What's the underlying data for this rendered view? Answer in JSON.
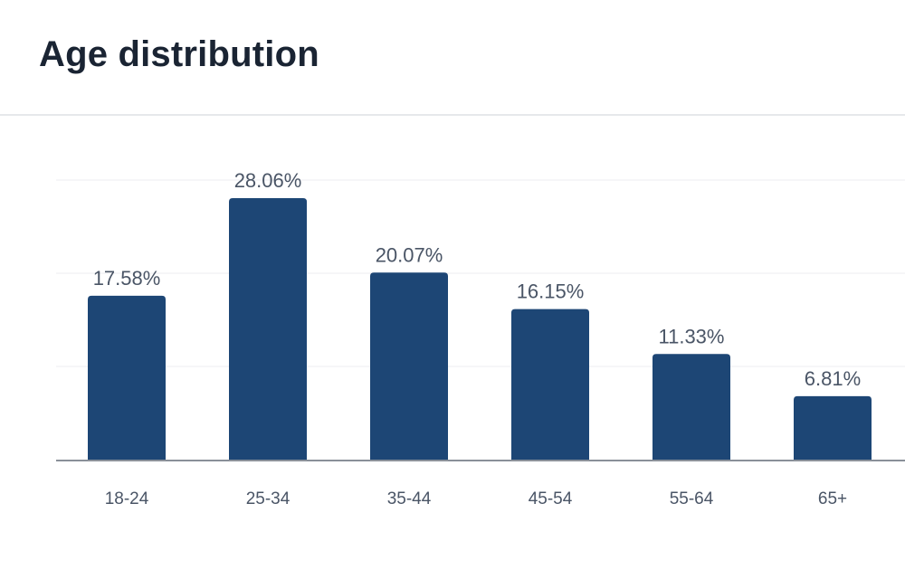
{
  "header": {
    "title": "Age distribution"
  },
  "chart_data": {
    "type": "bar",
    "title": "Age distribution",
    "xlabel": "",
    "ylabel": "",
    "categories": [
      "18-24",
      "25-34",
      "35-44",
      "45-54",
      "55-64",
      "65+"
    ],
    "values": [
      17.58,
      28.06,
      20.07,
      16.15,
      11.33,
      6.81
    ],
    "data_labels": [
      "17.58%",
      "28.06%",
      "20.07%",
      "16.15%",
      "11.33%",
      "6.81%"
    ],
    "ylim": [
      0,
      30
    ],
    "grid": true,
    "legend": "none",
    "bar_color": "#1d4675",
    "gridline_color": "#eceef1",
    "axis_color": "#8a9099"
  }
}
